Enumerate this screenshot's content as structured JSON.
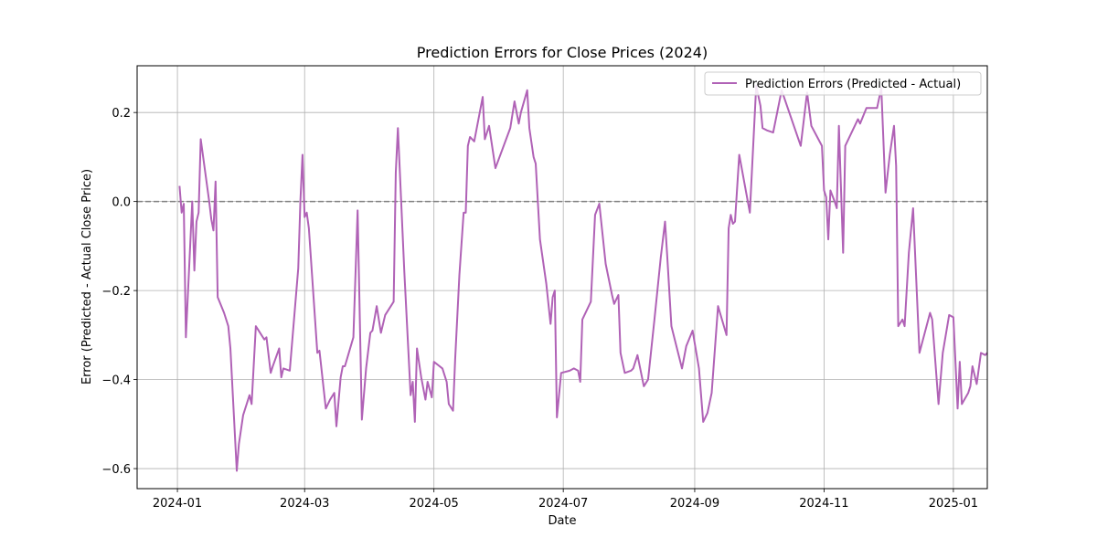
{
  "chart_data": {
    "type": "line",
    "title": "Prediction Errors for Close Prices (2024)",
    "xlabel": "Date",
    "ylabel": "Error (Predicted - Actual Close Price)",
    "x_tick_labels": [
      "2024-01",
      "2024-03",
      "2024-05",
      "2024-07",
      "2024-09",
      "2024-11",
      "2025-01"
    ],
    "x_ticks": [
      "2024-01-01",
      "2024-03-01",
      "2024-05-01",
      "2024-07-01",
      "2024-09-01",
      "2024-11-01",
      "2025-01-01"
    ],
    "y_ticks": [
      -0.6,
      -0.4,
      -0.2,
      0.0,
      0.2
    ],
    "y_tick_labels": [
      "−0.6",
      "−0.4",
      "−0.2",
      "0.0",
      "0.2"
    ],
    "xlim": [
      "2023-12-13",
      "2025-01-17"
    ],
    "ylim": [
      -0.645,
      0.305
    ],
    "grid": true,
    "legend_position": "upper-right",
    "reference_line": {
      "y": 0.0,
      "style": "dashed",
      "color": "#808080"
    },
    "series": [
      {
        "name": "Prediction Errors (Predicted - Actual)",
        "color": "#b062b6",
        "points": [
          [
            "2024-01-02",
            0.035
          ],
          [
            "2024-01-03",
            -0.025
          ],
          [
            "2024-01-04",
            -0.005
          ],
          [
            "2024-01-05",
            -0.305
          ],
          [
            "2024-01-08",
            0.0
          ],
          [
            "2024-01-09",
            -0.155
          ],
          [
            "2024-01-10",
            -0.045
          ],
          [
            "2024-01-11",
            -0.025
          ],
          [
            "2024-01-12",
            0.14
          ],
          [
            "2024-01-16",
            0.0
          ],
          [
            "2024-01-17",
            -0.04
          ],
          [
            "2024-01-18",
            -0.065
          ],
          [
            "2024-01-19",
            0.045
          ],
          [
            "2024-01-20",
            -0.215
          ],
          [
            "2024-01-23",
            -0.25
          ],
          [
            "2024-01-25",
            -0.28
          ],
          [
            "2024-01-26",
            -0.33
          ],
          [
            "2024-01-29",
            -0.605
          ],
          [
            "2024-01-30",
            -0.545
          ],
          [
            "2024-02-01",
            -0.48
          ],
          [
            "2024-02-04",
            -0.435
          ],
          [
            "2024-02-05",
            -0.455
          ],
          [
            "2024-02-07",
            -0.28
          ],
          [
            "2024-02-09",
            -0.295
          ],
          [
            "2024-02-11",
            -0.31
          ],
          [
            "2024-02-12",
            -0.305
          ],
          [
            "2024-02-14",
            -0.385
          ],
          [
            "2024-02-15",
            -0.37
          ],
          [
            "2024-02-18",
            -0.33
          ],
          [
            "2024-02-19",
            -0.395
          ],
          [
            "2024-02-20",
            -0.375
          ],
          [
            "2024-02-23",
            -0.38
          ],
          [
            "2024-02-27",
            -0.15
          ],
          [
            "2024-02-28",
            0.0
          ],
          [
            "2024-02-29",
            0.105
          ],
          [
            "2024-03-01",
            -0.035
          ],
          [
            "2024-03-02",
            -0.025
          ],
          [
            "2024-03-03",
            -0.06
          ],
          [
            "2024-03-07",
            -0.34
          ],
          [
            "2024-03-08",
            -0.335
          ],
          [
            "2024-03-11",
            -0.465
          ],
          [
            "2024-03-13",
            -0.445
          ],
          [
            "2024-03-15",
            -0.43
          ],
          [
            "2024-03-16",
            -0.505
          ],
          [
            "2024-03-18",
            -0.395
          ],
          [
            "2024-03-19",
            -0.37
          ],
          [
            "2024-03-20",
            -0.37
          ],
          [
            "2024-03-24",
            -0.305
          ],
          [
            "2024-03-26",
            -0.02
          ],
          [
            "2024-03-28",
            -0.49
          ],
          [
            "2024-03-30",
            -0.375
          ],
          [
            "2024-04-01",
            -0.295
          ],
          [
            "2024-04-02",
            -0.29
          ],
          [
            "2024-04-04",
            -0.235
          ],
          [
            "2024-04-06",
            -0.295
          ],
          [
            "2024-04-08",
            -0.255
          ],
          [
            "2024-04-12",
            -0.225
          ],
          [
            "2024-04-13",
            0.065
          ],
          [
            "2024-04-14",
            0.165
          ],
          [
            "2024-04-17",
            -0.155
          ],
          [
            "2024-04-20",
            -0.435
          ],
          [
            "2024-04-21",
            -0.405
          ],
          [
            "2024-04-22",
            -0.495
          ],
          [
            "2024-04-23",
            -0.33
          ],
          [
            "2024-04-25",
            -0.395
          ],
          [
            "2024-04-27",
            -0.445
          ],
          [
            "2024-04-28",
            -0.405
          ],
          [
            "2024-04-30",
            -0.44
          ],
          [
            "2024-05-01",
            -0.36
          ],
          [
            "2024-05-05",
            -0.375
          ],
          [
            "2024-05-07",
            -0.405
          ],
          [
            "2024-05-08",
            -0.455
          ],
          [
            "2024-05-10",
            -0.47
          ],
          [
            "2024-05-11",
            -0.355
          ],
          [
            "2024-05-13",
            -0.165
          ],
          [
            "2024-05-15",
            -0.025
          ],
          [
            "2024-05-16",
            -0.025
          ],
          [
            "2024-05-17",
            0.125
          ],
          [
            "2024-05-18",
            0.145
          ],
          [
            "2024-05-20",
            0.135
          ],
          [
            "2024-05-24",
            0.235
          ],
          [
            "2024-05-25",
            0.14
          ],
          [
            "2024-05-27",
            0.17
          ],
          [
            "2024-05-30",
            0.075
          ],
          [
            "2024-06-06",
            0.165
          ],
          [
            "2024-06-08",
            0.225
          ],
          [
            "2024-06-10",
            0.175
          ],
          [
            "2024-06-11",
            0.2
          ],
          [
            "2024-06-14",
            0.25
          ],
          [
            "2024-06-15",
            0.165
          ],
          [
            "2024-06-17",
            0.1
          ],
          [
            "2024-06-18",
            0.085
          ],
          [
            "2024-06-20",
            -0.085
          ],
          [
            "2024-06-23",
            -0.185
          ],
          [
            "2024-06-25",
            -0.275
          ],
          [
            "2024-06-26",
            -0.215
          ],
          [
            "2024-06-27",
            -0.2
          ],
          [
            "2024-06-28",
            -0.485
          ],
          [
            "2024-06-30",
            -0.385
          ],
          [
            "2024-07-04",
            -0.38
          ],
          [
            "2024-07-06",
            -0.375
          ],
          [
            "2024-07-08",
            -0.38
          ],
          [
            "2024-07-09",
            -0.405
          ],
          [
            "2024-07-10",
            -0.265
          ],
          [
            "2024-07-14",
            -0.225
          ],
          [
            "2024-07-16",
            -0.03
          ],
          [
            "2024-07-18",
            -0.005
          ],
          [
            "2024-07-20",
            -0.095
          ],
          [
            "2024-07-21",
            -0.14
          ],
          [
            "2024-07-24",
            -0.21
          ],
          [
            "2024-07-25",
            -0.23
          ],
          [
            "2024-07-27",
            -0.21
          ],
          [
            "2024-07-28",
            -0.34
          ],
          [
            "2024-07-30",
            -0.385
          ],
          [
            "2024-08-02",
            -0.38
          ],
          [
            "2024-08-03",
            -0.375
          ],
          [
            "2024-08-05",
            -0.345
          ],
          [
            "2024-08-08",
            -0.415
          ],
          [
            "2024-08-10",
            -0.4
          ],
          [
            "2024-08-13",
            -0.265
          ],
          [
            "2024-08-16",
            -0.125
          ],
          [
            "2024-08-18",
            -0.045
          ],
          [
            "2024-08-19",
            -0.12
          ],
          [
            "2024-08-21",
            -0.28
          ],
          [
            "2024-08-26",
            -0.375
          ],
          [
            "2024-08-28",
            -0.325
          ],
          [
            "2024-08-31",
            -0.29
          ],
          [
            "2024-09-03",
            -0.375
          ],
          [
            "2024-09-05",
            -0.495
          ],
          [
            "2024-09-07",
            -0.475
          ],
          [
            "2024-09-09",
            -0.43
          ],
          [
            "2024-09-12",
            -0.235
          ],
          [
            "2024-09-16",
            -0.3
          ],
          [
            "2024-09-17",
            -0.06
          ],
          [
            "2024-09-18",
            -0.03
          ],
          [
            "2024-09-19",
            -0.05
          ],
          [
            "2024-09-20",
            -0.045
          ],
          [
            "2024-09-22",
            0.105
          ],
          [
            "2024-09-27",
            -0.025
          ],
          [
            "2024-09-30",
            0.26
          ],
          [
            "2024-10-02",
            0.215
          ],
          [
            "2024-10-03",
            0.165
          ],
          [
            "2024-10-05",
            0.16
          ],
          [
            "2024-10-08",
            0.155
          ],
          [
            "2024-10-12",
            0.25
          ],
          [
            "2024-10-21",
            0.125
          ],
          [
            "2024-10-24",
            0.245
          ],
          [
            "2024-10-26",
            0.17
          ],
          [
            "2024-10-31",
            0.125
          ],
          [
            "2024-11-01",
            0.025
          ],
          [
            "2024-11-02",
            0.01
          ],
          [
            "2024-11-03",
            -0.085
          ],
          [
            "2024-11-04",
            0.025
          ],
          [
            "2024-11-06",
            0.0
          ],
          [
            "2024-11-07",
            -0.015
          ],
          [
            "2024-11-08",
            0.17
          ],
          [
            "2024-11-10",
            -0.115
          ],
          [
            "2024-11-11",
            0.125
          ],
          [
            "2024-11-17",
            0.185
          ],
          [
            "2024-11-18",
            0.175
          ],
          [
            "2024-11-21",
            0.21
          ],
          [
            "2024-11-26",
            0.21
          ],
          [
            "2024-11-28",
            0.255
          ],
          [
            "2024-11-30",
            0.02
          ],
          [
            "2024-12-02",
            0.105
          ],
          [
            "2024-12-04",
            0.17
          ],
          [
            "2024-12-05",
            0.08
          ],
          [
            "2024-12-06",
            -0.28
          ],
          [
            "2024-12-08",
            -0.265
          ],
          [
            "2024-12-09",
            -0.28
          ],
          [
            "2024-12-11",
            -0.115
          ],
          [
            "2024-12-13",
            -0.015
          ],
          [
            "2024-12-16",
            -0.34
          ],
          [
            "2024-12-21",
            -0.25
          ],
          [
            "2024-12-22",
            -0.265
          ],
          [
            "2024-12-25",
            -0.455
          ],
          [
            "2024-12-27",
            -0.34
          ],
          [
            "2024-12-30",
            -0.255
          ],
          [
            "2025-01-01",
            -0.26
          ],
          [
            "2025-01-03",
            -0.465
          ],
          [
            "2025-01-04",
            -0.36
          ],
          [
            "2025-01-05",
            -0.455
          ],
          [
            "2025-01-08",
            -0.43
          ],
          [
            "2025-01-09",
            -0.415
          ],
          [
            "2025-01-10",
            -0.37
          ],
          [
            "2025-01-12",
            -0.41
          ],
          [
            "2025-01-14",
            -0.34
          ],
          [
            "2025-01-16",
            -0.345
          ],
          [
            "2025-01-17",
            -0.34
          ]
        ]
      }
    ]
  }
}
